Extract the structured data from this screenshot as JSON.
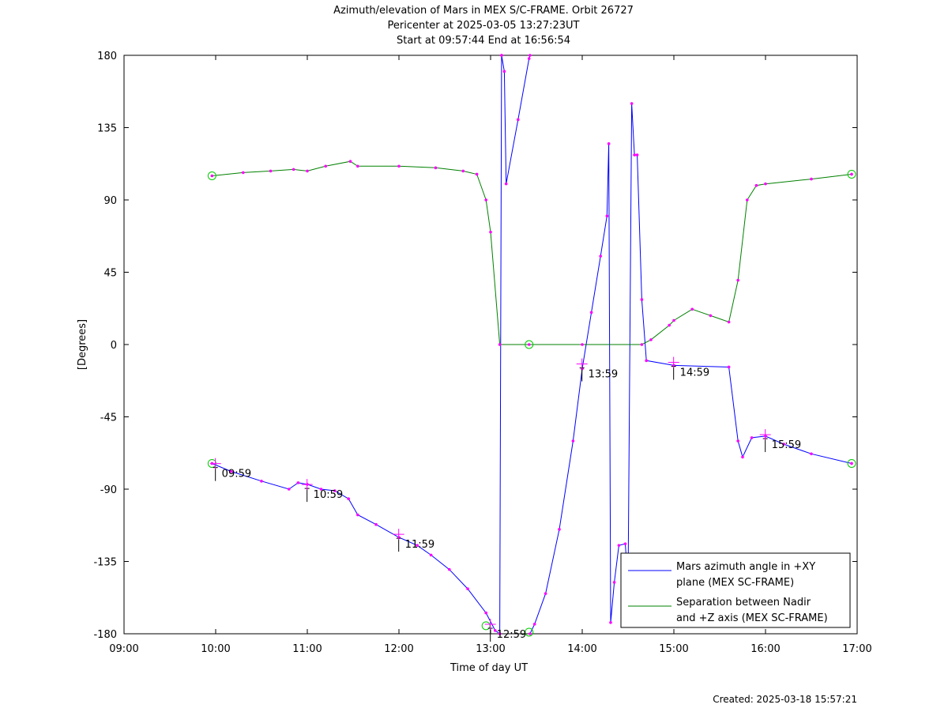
{
  "chart_data": {
    "type": "line",
    "title": [
      "Azimuth/elevation of Mars in MEX S/C-FRAME.  Orbit 26727",
      "Pericenter at 2025-03-05 13:27:23UT",
      "Start at 09:57:44 End at 16:56:54"
    ],
    "xlabel": "Time of day UT",
    "ylabel": "[Degrees]",
    "x_unit": "hours of day",
    "xlim": [
      9,
      17
    ],
    "ylim": [
      -180,
      180
    ],
    "x_ticks": [
      9,
      10,
      11,
      12,
      13,
      14,
      15,
      16,
      17
    ],
    "x_tick_labels": [
      "09:00",
      "10:00",
      "11:00",
      "12:00",
      "13:00",
      "14:00",
      "15:00",
      "16:00",
      "17:00"
    ],
    "y_ticks": [
      -180,
      -135,
      -90,
      -45,
      0,
      45,
      90,
      135,
      180
    ],
    "y_tick_labels": [
      "-180",
      "-135",
      "-90",
      "-45",
      "0",
      "45",
      "90",
      "135",
      "180"
    ],
    "grid": false,
    "legend_position": "bottom-right",
    "series": [
      {
        "name": "Mars azimuth angle in +XY plane (MEX SC-FRAME)",
        "legend_lines": [
          "Mars azimuth angle in +XY",
          "plane (MEX SC-FRAME)"
        ],
        "color": "#0000ff",
        "points": [
          [
            9.96,
            -74
          ],
          [
            10.17,
            -79
          ],
          [
            10.5,
            -85
          ],
          [
            10.8,
            -90
          ],
          [
            10.9,
            -86
          ],
          [
            11.0,
            -87
          ],
          [
            11.15,
            -90
          ],
          [
            11.3,
            -91
          ],
          [
            11.45,
            -96
          ],
          [
            11.55,
            -106
          ],
          [
            11.75,
            -112
          ],
          [
            12.0,
            -120
          ],
          [
            12.2,
            -125
          ],
          [
            12.35,
            -131
          ],
          [
            12.55,
            -140
          ],
          [
            12.75,
            -152
          ],
          [
            12.95,
            -167
          ],
          [
            13.05,
            -178
          ],
          [
            13.1,
            -180
          ],
          [
            null,
            null
          ],
          [
            13.1,
            -180
          ],
          [
            13.12,
            180
          ],
          [
            null,
            null
          ],
          [
            13.12,
            180
          ],
          [
            13.15,
            170
          ],
          [
            13.17,
            100
          ],
          [
            13.3,
            140
          ],
          [
            13.42,
            178
          ],
          [
            13.43,
            180
          ],
          [
            null,
            null
          ],
          [
            13.43,
            -180
          ],
          [
            13.48,
            -174
          ],
          [
            13.6,
            -155
          ],
          [
            13.75,
            -115
          ],
          [
            13.9,
            -60
          ],
          [
            14.0,
            -15
          ],
          [
            14.1,
            20
          ],
          [
            14.2,
            55
          ],
          [
            14.27,
            80
          ],
          [
            14.29,
            125
          ],
          [
            14.31,
            -173
          ],
          [
            14.35,
            -148
          ],
          [
            14.4,
            -125
          ],
          [
            14.47,
            -124
          ],
          [
            14.5,
            -150
          ],
          [
            14.54,
            150
          ],
          [
            14.57,
            118
          ],
          [
            14.6,
            118
          ],
          [
            14.65,
            28
          ],
          [
            14.7,
            -10
          ],
          [
            15.0,
            -13
          ],
          [
            15.6,
            -14
          ],
          [
            15.7,
            -60
          ],
          [
            15.75,
            -70
          ],
          [
            15.85,
            -58
          ],
          [
            16.0,
            -57
          ],
          [
            16.2,
            -62
          ],
          [
            16.5,
            -68
          ],
          [
            16.94,
            -74
          ]
        ],
        "marked_points": [
          [
            9.96,
            -74
          ],
          [
            12.95,
            -175
          ],
          [
            13.42,
            -179
          ],
          [
            16.94,
            -74
          ]
        ]
      },
      {
        "name": "Separation between Nadir and +Z axis (MEX SC-FRAME)",
        "legend_lines": [
          "Separation between Nadir",
          "and +Z axis (MEX SC-FRAME)"
        ],
        "color": "#008000",
        "points": [
          [
            9.96,
            105
          ],
          [
            10.3,
            107
          ],
          [
            10.6,
            108
          ],
          [
            10.85,
            109
          ],
          [
            11.0,
            108
          ],
          [
            11.2,
            111
          ],
          [
            11.47,
            114
          ],
          [
            11.55,
            111
          ],
          [
            12.0,
            111
          ],
          [
            12.4,
            110
          ],
          [
            12.7,
            108
          ],
          [
            12.85,
            106
          ],
          [
            12.95,
            90
          ],
          [
            13.0,
            70
          ],
          [
            13.1,
            0
          ],
          [
            13.42,
            0
          ],
          [
            14.0,
            0
          ],
          [
            14.65,
            0
          ],
          [
            14.75,
            3
          ],
          [
            14.95,
            12
          ],
          [
            15.0,
            15
          ],
          [
            15.2,
            22
          ],
          [
            15.4,
            18
          ],
          [
            15.6,
            14
          ],
          [
            15.7,
            40
          ],
          [
            15.8,
            90
          ],
          [
            15.9,
            99
          ],
          [
            16.0,
            100
          ],
          [
            16.5,
            103
          ],
          [
            16.94,
            106
          ]
        ],
        "marked_points": [
          [
            9.96,
            105
          ],
          [
            13.42,
            0
          ],
          [
            16.94,
            106
          ]
        ]
      }
    ],
    "time_annotations": [
      {
        "x": 9.98,
        "y": -80,
        "label": "09:59"
      },
      {
        "x": 10.98,
        "y": -93,
        "label": "10:59"
      },
      {
        "x": 11.98,
        "y": -124,
        "label": "11:59"
      },
      {
        "x": 12.98,
        "y": -180,
        "label": "12:59"
      },
      {
        "x": 13.98,
        "y": -18,
        "label": "13:59"
      },
      {
        "x": 14.98,
        "y": -17,
        "label": "14:59"
      },
      {
        "x": 15.98,
        "y": -62,
        "label": "15:59"
      }
    ]
  },
  "footer": {
    "created": "Created: 2025-03-18 15:57:21"
  }
}
